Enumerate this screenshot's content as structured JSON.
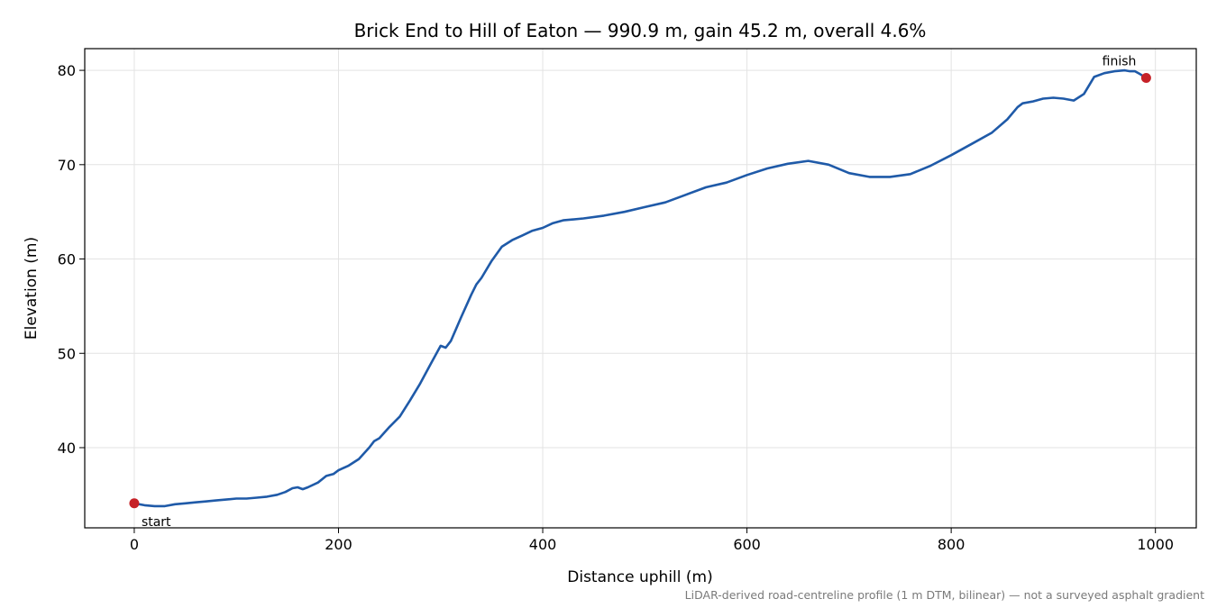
{
  "chart_data": {
    "type": "line",
    "title": "Brick End to Hill of Eaton — 990.9 m, gain 45.2 m, overall 4.6%",
    "xlabel": "Distance uphill (m)",
    "ylabel": "Elevation (m)",
    "footnote": "LiDAR-derived road-centreline profile (1 m DTM, bilinear) — not a surveyed asphalt gradient",
    "xlim": [
      -48.5,
      1040
    ],
    "ylim": [
      31.5,
      82.3
    ],
    "xticks": [
      0,
      200,
      400,
      600,
      800,
      1000
    ],
    "yticks": [
      40,
      50,
      60,
      70,
      80
    ],
    "grid": true,
    "series": [
      {
        "color": "#1f5aa8",
        "x": [
          0,
          10,
          20,
          30,
          40,
          50,
          60,
          70,
          80,
          90,
          100,
          110,
          120,
          130,
          140,
          148,
          155,
          160,
          165,
          170,
          180,
          188,
          195,
          200,
          210,
          220,
          230,
          235,
          240,
          250,
          260,
          270,
          280,
          290,
          300,
          305,
          310,
          320,
          330,
          335,
          340,
          350,
          360,
          370,
          380,
          390,
          400,
          410,
          420,
          440,
          460,
          480,
          500,
          520,
          540,
          560,
          580,
          600,
          620,
          640,
          660,
          680,
          700,
          720,
          740,
          760,
          780,
          800,
          820,
          840,
          855,
          865,
          870,
          880,
          890,
          900,
          910,
          920,
          930,
          940,
          950,
          960,
          970,
          975,
          980,
          985,
          990.9
        ],
        "y": [
          34.1,
          33.9,
          33.8,
          33.8,
          34.0,
          34.1,
          34.2,
          34.3,
          34.4,
          34.5,
          34.6,
          34.6,
          34.7,
          34.8,
          35.0,
          35.3,
          35.7,
          35.8,
          35.6,
          35.8,
          36.3,
          37.0,
          37.2,
          37.6,
          38.1,
          38.8,
          40.0,
          40.7,
          41.0,
          42.2,
          43.3,
          45.0,
          46.8,
          48.8,
          50.8,
          50.6,
          51.3,
          53.8,
          56.2,
          57.3,
          58.0,
          59.8,
          61.3,
          62.0,
          62.5,
          63.0,
          63.3,
          63.8,
          64.1,
          64.3,
          64.6,
          65.0,
          65.5,
          66.0,
          66.8,
          67.6,
          68.1,
          68.9,
          69.6,
          70.1,
          70.4,
          70.0,
          69.1,
          68.7,
          68.7,
          69.0,
          69.9,
          71.0,
          72.2,
          73.4,
          74.8,
          76.1,
          76.5,
          76.7,
          77.0,
          77.1,
          77.0,
          76.8,
          77.5,
          79.3,
          79.7,
          79.9,
          80.0,
          79.9,
          79.9,
          79.6,
          79.2
        ]
      }
    ],
    "markers": [
      {
        "label": "start",
        "x": 0,
        "y": 34.1,
        "color": "#c62127"
      },
      {
        "label": "finish",
        "x": 990.9,
        "y": 79.2,
        "color": "#c62127"
      }
    ]
  }
}
